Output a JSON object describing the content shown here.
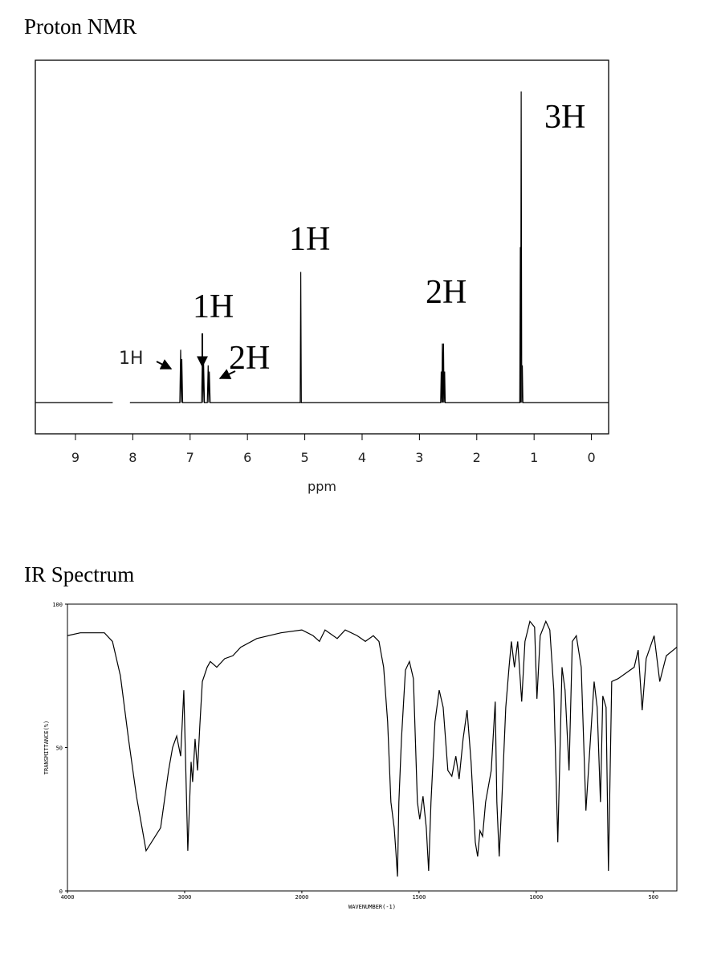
{
  "chart_data": [
    {
      "type": "line",
      "title": "Proton NMR",
      "x_label": "ppm",
      "xlim": [
        9.7,
        -0.3
      ],
      "ylim": [
        -10,
        110
      ],
      "xticks": [
        9,
        8,
        7,
        6,
        5,
        4,
        3,
        2,
        1,
        0
      ],
      "color": "#000000",
      "annotations": [
        "1H",
        "1H",
        "2H",
        "1H",
        "2H",
        "3H"
      ],
      "x": [
        9.7,
        8.35,
        8.2,
        8.05,
        7.18,
        7.165,
        7.155,
        7.145,
        7.13,
        6.8,
        6.785,
        6.775,
        6.765,
        6.75,
        6.7,
        6.685,
        6.675,
        6.665,
        6.65,
        5.08,
        5.07,
        5.06,
        2.63,
        2.62,
        2.61,
        2.6,
        2.59,
        2.58,
        2.57,
        2.56,
        2.55,
        1.25,
        1.24,
        1.235,
        1.225,
        1.215,
        1.205,
        1.195,
        -0.3
      ],
      "values": [
        0,
        0,
        null,
        0,
        0,
        17,
        0,
        14,
        0,
        0,
        16,
        0,
        13,
        0,
        0,
        12,
        0,
        10,
        0,
        0,
        42,
        0,
        0,
        10,
        0,
        19,
        0,
        19,
        0,
        10,
        0,
        0,
        50,
        0,
        100,
        0,
        12,
        0,
        0
      ]
    },
    {
      "type": "line",
      "title": "IR Spectrum",
      "x_label": "WAVENUMBER(-1)",
      "y_label": "TRANSMITTANCE(%)",
      "xlim": [
        4000,
        400
      ],
      "x_scale_break": 2000,
      "x_scale_factor": 2,
      "ylim": [
        0,
        100
      ],
      "xticks": [
        4000,
        3000,
        2000,
        1500,
        1000,
        500
      ],
      "yticks": [
        0,
        50,
        100
      ],
      "color": "#000000",
      "x": [
        4000,
        3890,
        3685,
        3616,
        3548,
        3479,
        3411,
        3329,
        3205,
        3137,
        3103,
        3068,
        3034,
        3007,
        2973,
        2945,
        2932,
        2911,
        2890,
        2870,
        2849,
        2808,
        2781,
        2726,
        2658,
        2589,
        2521,
        2384,
        2178,
        2000,
        1952,
        1925,
        1901,
        1849,
        1815,
        1764,
        1729,
        1695,
        1671,
        1651,
        1634,
        1620,
        1606,
        1599,
        1592,
        1586,
        1575,
        1558,
        1541,
        1524,
        1507,
        1497,
        1483,
        1469,
        1459,
        1449,
        1432,
        1414,
        1397,
        1377,
        1360,
        1343,
        1329,
        1312,
        1295,
        1278,
        1260,
        1250,
        1240,
        1229,
        1216,
        1192,
        1175,
        1168,
        1158,
        1147,
        1130,
        1116,
        1106,
        1093,
        1079,
        1062,
        1048,
        1027,
        1007,
        997,
        983,
        959,
        942,
        925,
        908,
        890,
        877,
        860,
        846,
        829,
        808,
        788,
        771,
        753,
        740,
        726,
        716,
        702,
        692,
        678,
        651,
        582,
        565,
        548,
        531,
        497,
        473,
        445,
        400
      ],
      "values": [
        89,
        90,
        90,
        87,
        75,
        53,
        33,
        14,
        22,
        42,
        50,
        54,
        47,
        70,
        14,
        45,
        38,
        53,
        42,
        58,
        73,
        78,
        80,
        78,
        81,
        82,
        85,
        88,
        90,
        91,
        89,
        87,
        91,
        88,
        91,
        89,
        87,
        89,
        87,
        78,
        59,
        31,
        22,
        14,
        5,
        31,
        53,
        77,
        80,
        74,
        31,
        25,
        33,
        22,
        7,
        31,
        59,
        70,
        64,
        42,
        40,
        47,
        39,
        53,
        63,
        45,
        17,
        12,
        21,
        19,
        31,
        42,
        66,
        31,
        12,
        31,
        64,
        78,
        87,
        78,
        87,
        66,
        87,
        94,
        92,
        67,
        89,
        94,
        91,
        70,
        17,
        78,
        70,
        42,
        87,
        89,
        78,
        28,
        50,
        73,
        64,
        31,
        68,
        64,
        7,
        73,
        74,
        78,
        84,
        63,
        81,
        89,
        73,
        82,
        85
      ]
    }
  ]
}
